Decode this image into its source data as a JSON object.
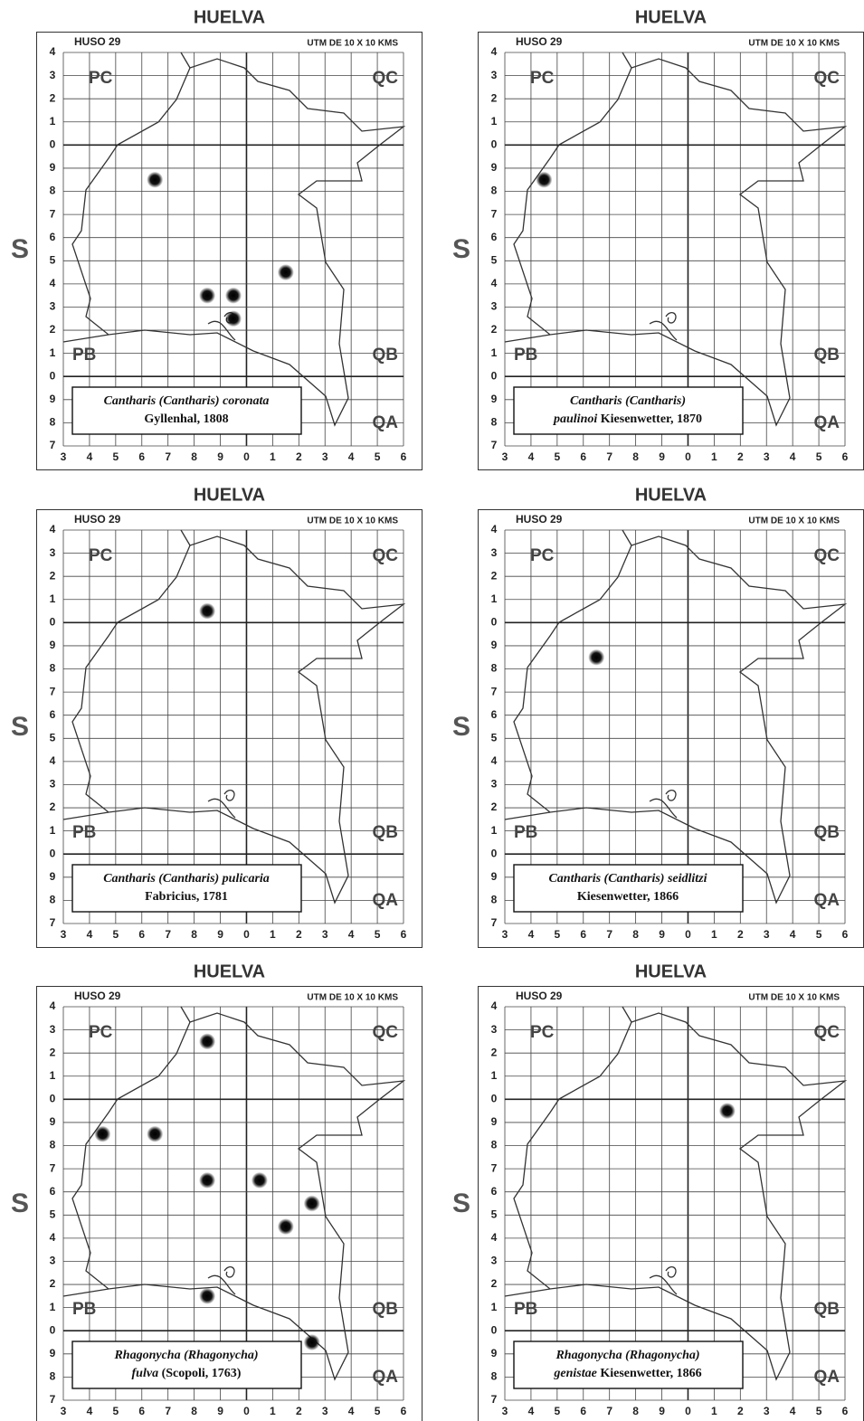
{
  "grid": {
    "huso": "HUSO 29",
    "utm": "UTM  DE  10 X 10  KMS",
    "zone": "S",
    "quadrants": {
      "pc": "PC",
      "qc": "QC",
      "pb": "PB",
      "qb": "QB",
      "qa": "QA"
    },
    "x_labels": [
      "3",
      "4",
      "5",
      "6",
      "7",
      "8",
      "9",
      "0",
      "1",
      "2",
      "3",
      "4",
      "5",
      "6"
    ],
    "y_labels": [
      "4",
      "3",
      "2",
      "1",
      "0",
      "9",
      "8",
      "7",
      "6",
      "5",
      "4",
      "3",
      "2",
      "1",
      "0",
      "9",
      "8",
      "7"
    ]
  },
  "maps": [
    {
      "title": "HUELVA",
      "label": [
        [
          {
            "text": "Cantharis (Cantharis) coronata",
            "italic": true
          }
        ],
        [
          {
            "text": "Gyllenhal, 1808",
            "italic": false
          }
        ]
      ],
      "records": [
        {
          "x": 3.5,
          "y": 11.5
        },
        {
          "x": 5.5,
          "y": 6.5
        },
        {
          "x": 6.5,
          "y": 6.5
        },
        {
          "x": 6.5,
          "y": 5.5
        },
        {
          "x": 8.5,
          "y": 7.5
        }
      ]
    },
    {
      "title": "HUELVA",
      "label": [
        [
          {
            "text": "Cantharis (Cantharis)",
            "italic": true
          }
        ],
        [
          {
            "text": "paulinoi",
            "italic": true
          },
          {
            "text": " Kiesenwetter, 1870",
            "italic": false
          }
        ]
      ],
      "records": [
        {
          "x": 1.5,
          "y": 11.5
        }
      ]
    },
    {
      "title": "HUELVA",
      "label": [
        [
          {
            "text": "Cantharis (Cantharis) pulicaria",
            "italic": true
          }
        ],
        [
          {
            "text": "Fabricius, 1781",
            "italic": false
          }
        ]
      ],
      "records": [
        {
          "x": 5.5,
          "y": 13.5
        }
      ]
    },
    {
      "title": "HUELVA",
      "label": [
        [
          {
            "text": "Cantharis (Cantharis) seidlitzi",
            "italic": true
          }
        ],
        [
          {
            "text": "Kiesenwetter, 1866",
            "italic": false
          }
        ]
      ],
      "records": [
        {
          "x": 3.5,
          "y": 11.5
        }
      ]
    },
    {
      "title": "HUELVA",
      "label": [
        [
          {
            "text": "Rhagonycha (Rhagonycha)",
            "italic": true
          }
        ],
        [
          {
            "text": "fulva",
            "italic": true
          },
          {
            "text": " (Scopoli, 1763)",
            "italic": false
          }
        ]
      ],
      "records": [
        {
          "x": 5.5,
          "y": 15.5
        },
        {
          "x": 1.5,
          "y": 11.5
        },
        {
          "x": 3.5,
          "y": 11.5
        },
        {
          "x": 5.5,
          "y": 9.5
        },
        {
          "x": 7.5,
          "y": 9.5
        },
        {
          "x": 9.5,
          "y": 8.5
        },
        {
          "x": 8.5,
          "y": 7.5
        },
        {
          "x": 5.5,
          "y": 4.5
        },
        {
          "x": 9.5,
          "y": 2.5
        }
      ]
    },
    {
      "title": "HUELVA",
      "label": [
        [
          {
            "text": "Rhagonycha (Rhagonycha)",
            "italic": true
          }
        ],
        [
          {
            "text": "genistae",
            "italic": true
          },
          {
            "text": " Kiesenwetter, 1866",
            "italic": false
          }
        ]
      ],
      "records": [
        {
          "x": 8.5,
          "y": 12.5
        }
      ]
    }
  ]
}
